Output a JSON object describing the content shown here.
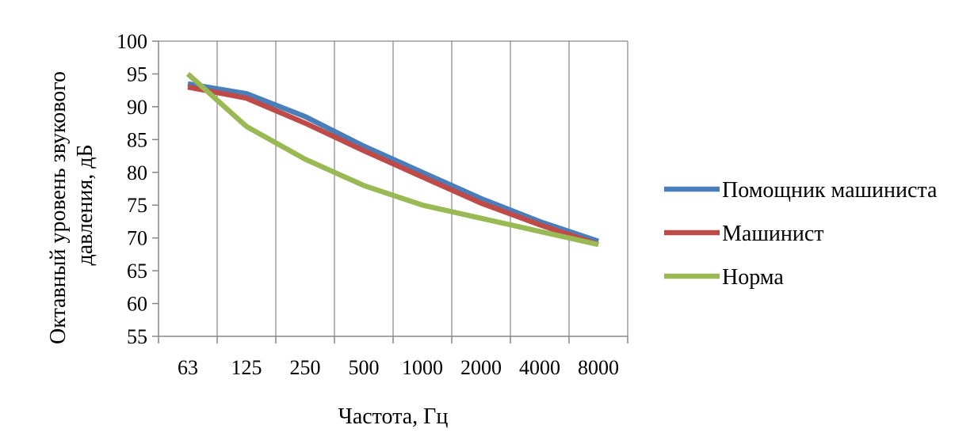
{
  "chart_data": {
    "type": "line",
    "title": "",
    "xlabel": "Частота, Гц",
    "ylabel": "Октавный уровень звукового давления, дБ",
    "ylabel_lines": [
      "Октавный уровень звукового",
      "давления, дБ"
    ],
    "categories": [
      "63",
      "125",
      "250",
      "500",
      "1000",
      "2000",
      "4000",
      "8000"
    ],
    "ylim": [
      55,
      100
    ],
    "yticks": [
      55,
      60,
      65,
      70,
      75,
      80,
      85,
      90,
      95,
      100
    ],
    "grid": "vertical",
    "legend_position": "right",
    "series": [
      {
        "name": "Помощник машиниста",
        "color": "#4a7ebb",
        "values": [
          93.5,
          92,
          88.5,
          84,
          80,
          76,
          72.5,
          69.5
        ]
      },
      {
        "name": "Машинист",
        "color": "#be4b48",
        "values": [
          93,
          91.3,
          87.5,
          83.3,
          79.3,
          75.3,
          72,
          69
        ]
      },
      {
        "name": "Норма",
        "color": "#98b954",
        "values": [
          95,
          87,
          82,
          78,
          75,
          73,
          71,
          69
        ]
      }
    ]
  }
}
